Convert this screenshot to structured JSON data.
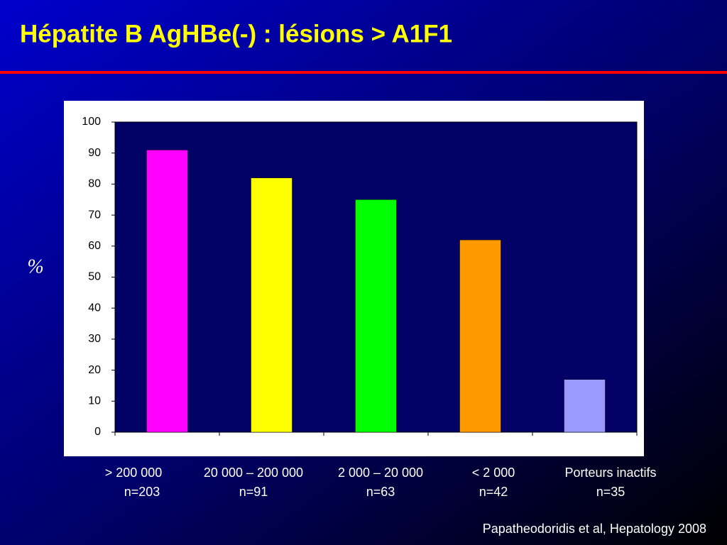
{
  "chart_data": {
    "type": "bar",
    "title": "Hépatite B AgHBe(-) : lésions > A1F1",
    "ylabel": "%",
    "categories": [
      "> 200 000",
      "20 000 – 200 000",
      "2 000 – 20 000",
      "< 2 000",
      "Porteurs inactifs"
    ],
    "counts": [
      "n=203",
      "n=91",
      "n=63",
      "n=42",
      "n=35"
    ],
    "values": [
      91,
      82,
      75,
      62,
      17
    ],
    "colors": [
      "#ff00ff",
      "#ffff00",
      "#00ff00",
      "#ff9900",
      "#9999ff"
    ],
    "ylim": [
      0,
      100
    ],
    "yticks": [
      0,
      10,
      20,
      30,
      40,
      50,
      60,
      70,
      80,
      90,
      100
    ],
    "source": "Papatheodoridis et al, Hepatology 2008"
  }
}
